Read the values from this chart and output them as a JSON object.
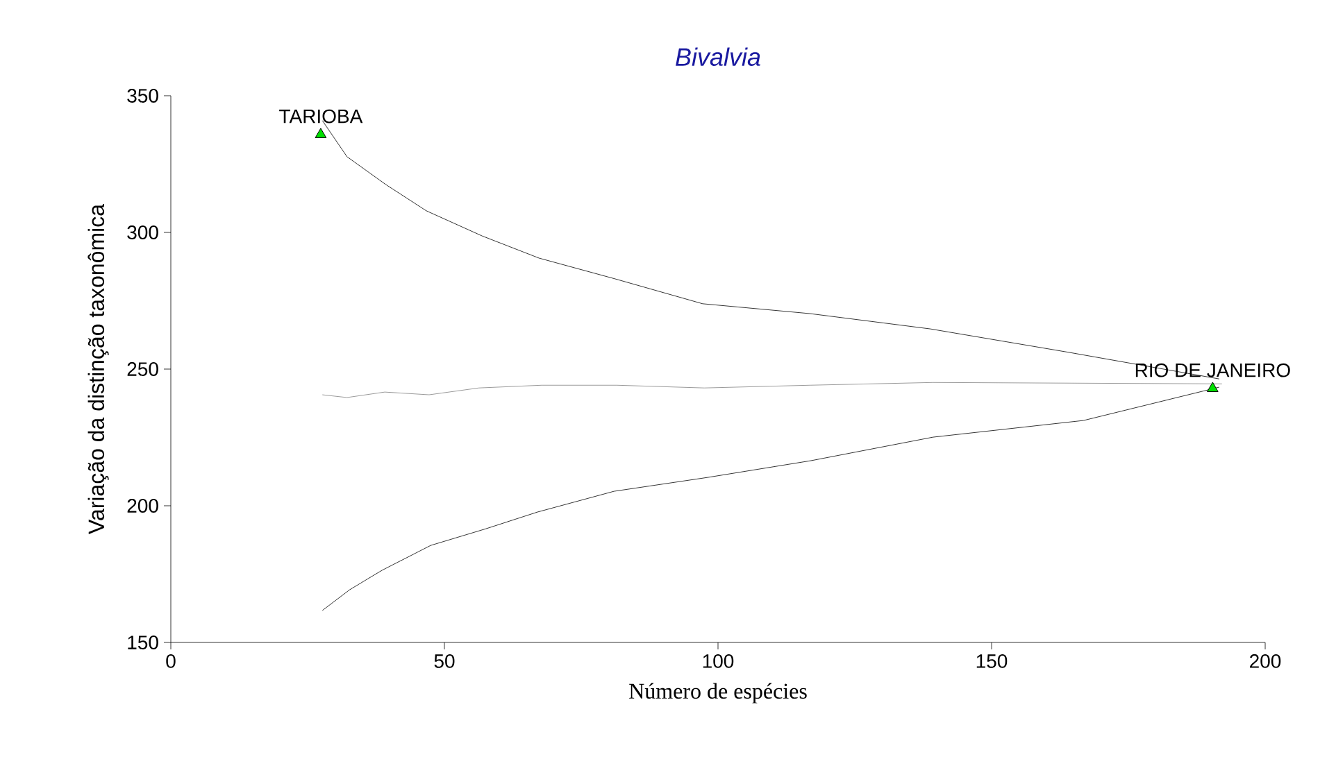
{
  "chart_data": {
    "type": "line",
    "title": "*Bivalvia*",
    "xlabel": "Número de espécies",
    "ylabel": "Variação da distinção taxonômica",
    "xlim": [
      0,
      200
    ],
    "xticks": [
      0,
      50,
      100,
      150,
      200
    ],
    "ylim": [
      150,
      350
    ],
    "yticks": [
      150,
      200,
      250,
      300,
      350
    ],
    "grid": false,
    "series": [
      {
        "color": "#000000",
        "x": [
          27.7,
          32.2,
          39.3,
          46.7,
          56.9,
          67.3,
          81.2,
          97.2,
          116.8,
          138.8,
          164.2,
          191.6
        ],
        "values": [
          340.9,
          327.7,
          317.5,
          307.9,
          298.7,
          290.6,
          283,
          273.9,
          270.3,
          264.7,
          256.1,
          246.4
        ]
      },
      {
        "color": "#000000",
        "x": [
          27.7,
          32.7,
          38.6,
          47.5,
          57.6,
          67,
          81,
          98.2,
          117,
          139.3,
          166.8,
          191.6
        ],
        "values": [
          161.7,
          169.3,
          176.4,
          185.5,
          191.6,
          197.7,
          205.3,
          210.4,
          216.5,
          225.1,
          231.2,
          243.4
        ]
      },
      {
        "color": "#808080",
        "x": [
          27.7,
          32.2,
          39.1,
          47.2,
          56.3,
          67.8,
          81.5,
          97.5,
          116.8,
          139.3,
          192.1
        ],
        "values": [
          240.6,
          239.6,
          241.6,
          240.6,
          243.1,
          244.1,
          244.1,
          243.1,
          244.1,
          245.1,
          244.6
        ]
      },
      {
        "type": "scatter",
        "color": "#00e000",
        "marker": "triangle",
        "x": [
          27.4,
          190.4
        ],
        "values": [
          335.8,
          242.9
        ]
      }
    ],
    "annotations": [
      {
        "text": "TARIOBA",
        "x": 27.4,
        "y": 335.8
      },
      {
        "text": "RIO DE JANEIRO",
        "x": 190.4,
        "y": 242.9
      }
    ]
  }
}
